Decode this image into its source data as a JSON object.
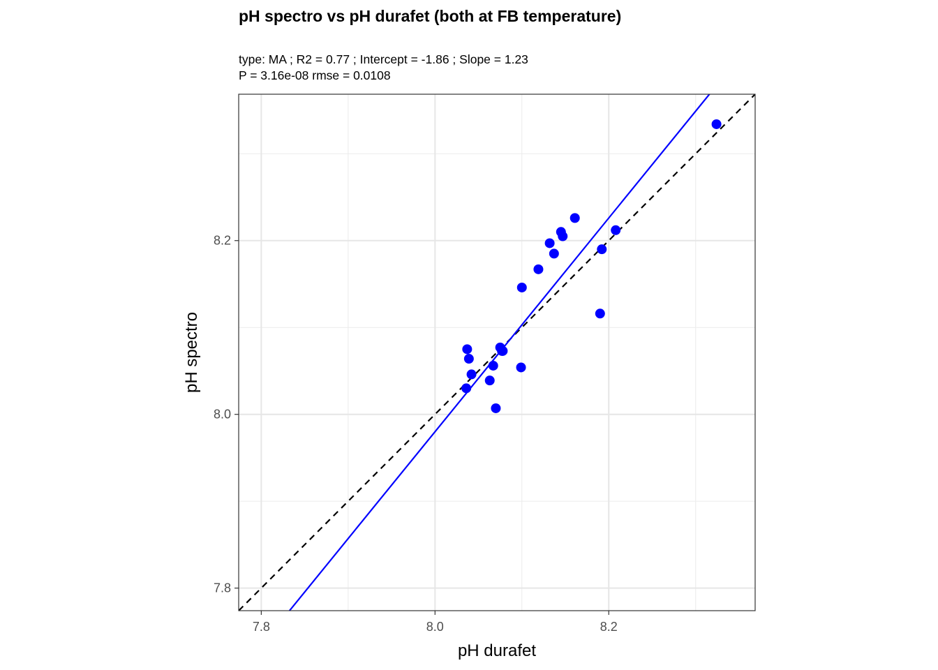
{
  "chart_data": {
    "type": "scatter",
    "title": "pH spectro vs pH durafet (both at FB temperature)",
    "subtitle_lines": [
      "type:  MA ; R2 =  0.77 ; Intercept = -1.86 ; Slope = 1.23",
      "P = 3.16e-08 rmse = 0.0108"
    ],
    "xlabel": "pH durafet",
    "ylabel": "pH spectro",
    "xlim": [
      7.774,
      8.3685
    ],
    "ylim": [
      7.774,
      8.3685
    ],
    "x_ticks": [
      7.8,
      8.0,
      8.2
    ],
    "y_ticks": [
      7.8,
      8.0,
      8.2
    ],
    "x_tick_labels": [
      "7.8",
      "8.0",
      "8.2"
    ],
    "y_tick_labels": [
      "7.8",
      "8.0",
      "8.2"
    ],
    "grid": true,
    "point_color": "#0000ff",
    "x": [
      8.037,
      8.039,
      8.036,
      8.042,
      8.075,
      8.077,
      8.078,
      8.067,
      8.063,
      8.099,
      8.07,
      8.1,
      8.119,
      8.132,
      8.137,
      8.145,
      8.147,
      8.161,
      8.19,
      8.192,
      8.208,
      8.324
    ],
    "y": [
      8.075,
      8.064,
      8.03,
      8.046,
      8.077,
      8.073,
      8.073,
      8.056,
      8.039,
      8.054,
      8.007,
      8.146,
      8.167,
      8.197,
      8.185,
      8.21,
      8.205,
      8.226,
      8.116,
      8.19,
      8.212,
      8.334
    ],
    "fit_line": {
      "method": "MA",
      "slope": 1.23,
      "intercept": -1.86,
      "color": "#0000ff"
    },
    "reference_line": {
      "slope": 1,
      "intercept": 0,
      "style": "dashed",
      "color": "#000000"
    }
  }
}
